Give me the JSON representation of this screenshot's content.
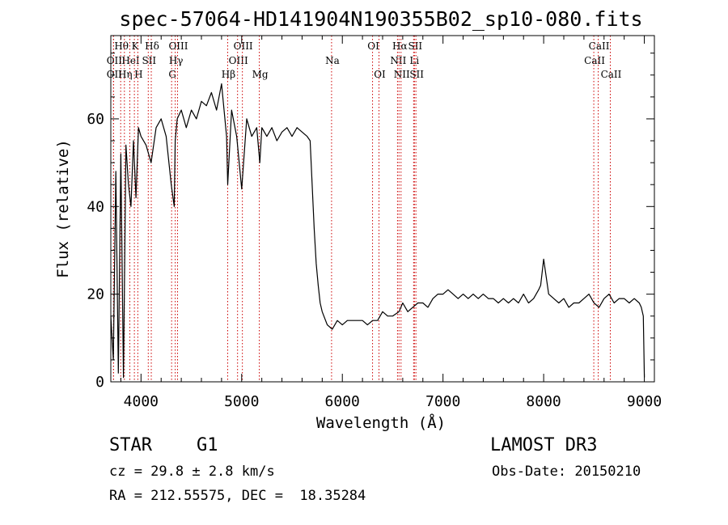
{
  "chart_data": {
    "type": "line",
    "title": "spec-57064-HD141904N190355B02_sp10-080.fits",
    "xlabel": "Wavelength (Å)",
    "ylabel": "Flux (relative)",
    "xlim": [
      3700,
      9100
    ],
    "ylim": [
      0,
      79
    ],
    "xticks": [
      4000,
      5000,
      6000,
      7000,
      8000,
      9000
    ],
    "yticks": [
      0,
      20,
      40,
      60
    ],
    "grid": false,
    "line_color": "#000000",
    "marker_color": "#cc0000",
    "series": [
      {
        "x": [
          3700,
          3725,
          3750,
          3775,
          3800,
          3825,
          3850,
          3875,
          3900,
          3925,
          3950,
          3975,
          4000,
          4050,
          4100,
          4150,
          4200,
          4250,
          4300,
          4330,
          4340,
          4360,
          4400,
          4450,
          4500,
          4550,
          4600,
          4650,
          4700,
          4750,
          4800,
          4850,
          4861,
          4900,
          4950,
          5000,
          5050,
          5100,
          5150,
          5180,
          5200,
          5250,
          5300,
          5350,
          5400,
          5450,
          5500,
          5550,
          5600,
          5650,
          5680,
          5700,
          5720,
          5740,
          5760,
          5780,
          5800,
          5850,
          5900,
          5950,
          6000,
          6050,
          6100,
          6150,
          6200,
          6250,
          6300,
          6350,
          6400,
          6450,
          6500,
          6563,
          6600,
          6650,
          6700,
          6750,
          6800,
          6850,
          6900,
          6950,
          7000,
          7050,
          7100,
          7150,
          7200,
          7250,
          7300,
          7350,
          7400,
          7450,
          7500,
          7550,
          7600,
          7650,
          7700,
          7750,
          7800,
          7850,
          7900,
          7950,
          7970,
          8000,
          8050,
          8100,
          8150,
          8200,
          8250,
          8300,
          8350,
          8400,
          8450,
          8500,
          8550,
          8600,
          8650,
          8700,
          8750,
          8800,
          8850,
          8900,
          8950,
          8970,
          8990,
          9000
        ],
        "y": [
          15,
          5,
          48,
          2,
          52,
          1,
          54,
          45,
          40,
          55,
          42,
          58,
          56,
          54,
          50,
          58,
          60,
          56,
          45,
          40,
          55,
          60,
          62,
          58,
          62,
          60,
          64,
          63,
          66,
          62,
          68,
          56,
          45,
          62,
          56,
          44,
          60,
          56,
          58,
          50,
          58,
          56,
          58,
          55,
          57,
          58,
          56,
          58,
          57,
          56,
          55,
          45,
          35,
          27,
          22,
          18,
          16,
          13,
          12,
          14,
          13,
          14,
          14,
          14,
          14,
          13,
          14,
          14,
          16,
          15,
          15,
          16,
          18,
          16,
          17,
          18,
          18,
          17,
          19,
          20,
          20,
          21,
          20,
          19,
          20,
          19,
          20,
          19,
          20,
          19,
          19,
          18,
          19,
          18,
          19,
          18,
          20,
          18,
          19,
          21,
          22,
          28,
          20,
          19,
          18,
          19,
          17,
          18,
          18,
          19,
          20,
          18,
          17,
          19,
          20,
          18,
          19,
          19,
          18,
          19,
          18,
          17,
          15,
          1
        ]
      }
    ],
    "line_markers": [
      {
        "wave": 3798,
        "labels": [
          "Hθ"
        ],
        "row": 0
      },
      {
        "wave": 3727,
        "labels": [
          "OII"
        ],
        "row": 1
      },
      {
        "wave": 3727,
        "labels": [
          "OII"
        ],
        "row": 2
      },
      {
        "wave": 3835,
        "labels": [
          "Hη"
        ],
        "row": 2
      },
      {
        "wave": 3889,
        "labels": [
          "HeI"
        ],
        "row": 1
      },
      {
        "wave": 3934,
        "labels": [
          "K"
        ],
        "row": 0
      },
      {
        "wave": 3968,
        "labels": [
          "H"
        ],
        "row": 2
      },
      {
        "wave": 4072,
        "labels": [
          "SII"
        ],
        "row": 1
      },
      {
        "wave": 4102,
        "labels": [
          "Hδ"
        ],
        "row": 0
      },
      {
        "wave": 4304,
        "labels": [
          "G"
        ],
        "row": 2
      },
      {
        "wave": 4340,
        "labels": [
          "Hγ"
        ],
        "row": 1
      },
      {
        "wave": 4363,
        "labels": [
          "OIII"
        ],
        "row": 0
      },
      {
        "wave": 4861,
        "labels": [
          "Hβ"
        ],
        "row": 2
      },
      {
        "wave": 4959,
        "labels": [
          "OIII"
        ],
        "row": 1
      },
      {
        "wave": 5007,
        "labels": [
          "OIII"
        ],
        "row": 0
      },
      {
        "wave": 5175,
        "labels": [
          "Mg"
        ],
        "row": 2
      },
      {
        "wave": 5893,
        "labels": [
          "Na"
        ],
        "row": 1
      },
      {
        "wave": 6300,
        "labels": [
          "OI"
        ],
        "row": 0
      },
      {
        "wave": 6364,
        "labels": [
          "OI"
        ],
        "row": 2
      },
      {
        "wave": 6548,
        "labels": [
          "NII"
        ],
        "row": 1
      },
      {
        "wave": 6563,
        "labels": [
          "Hα"
        ],
        "row": 0
      },
      {
        "wave": 6583,
        "labels": [
          "NII"
        ],
        "row": 2
      },
      {
        "wave": 6708,
        "labels": [
          "Li"
        ],
        "row": 1
      },
      {
        "wave": 6716,
        "labels": [
          "SII"
        ],
        "row": 0
      },
      {
        "wave": 6731,
        "labels": [
          "SII"
        ],
        "row": 2
      },
      {
        "wave": 8498,
        "labels": [
          "CaII"
        ],
        "row": 1
      },
      {
        "wave": 8542,
        "labels": [
          "CaII"
        ],
        "row": 0
      },
      {
        "wave": 8662,
        "labels": [
          "CaII"
        ],
        "row": 2
      }
    ]
  },
  "info": {
    "object_class": "STAR",
    "subclass": "G1",
    "survey": "LAMOST DR3",
    "redshift": "cz = 29.8 ± 2.8 km/s",
    "obs_date": "Obs-Date: 20150210",
    "coords": "RA = 212.55575, DEC =  18.35284"
  }
}
